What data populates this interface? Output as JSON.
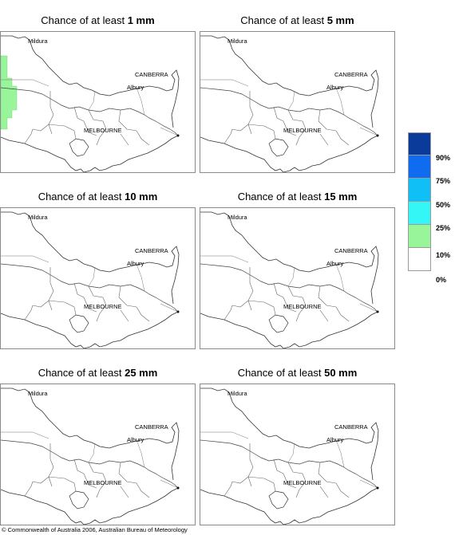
{
  "title_prefix": "Chance of at least",
  "panels": [
    {
      "amount": "1 mm"
    },
    {
      "amount": "5 mm"
    },
    {
      "amount": "10 mm"
    },
    {
      "amount": "15 mm"
    },
    {
      "amount": "25 mm"
    },
    {
      "amount": "50 mm"
    }
  ],
  "place_labels": {
    "mildura": "Mildura",
    "canberra": "CANBERRA",
    "albury": "Albury",
    "melbourne": "MELBOURNE"
  },
  "legend": {
    "colors": [
      "#0a3a9a",
      "#0f6cf0",
      "#10bff5",
      "#34f6f6",
      "#98f59a",
      "#ffffff"
    ],
    "ticks": [
      "90%",
      "75%",
      "50%",
      "25%",
      "10%",
      "0%"
    ]
  },
  "shading": {
    "panel_1mm": "10%-25% band along western edge",
    "color": "#98f59a"
  },
  "copyright": "© Commonwealth of Australia 2006, Australian Bureau of Meteorology"
}
